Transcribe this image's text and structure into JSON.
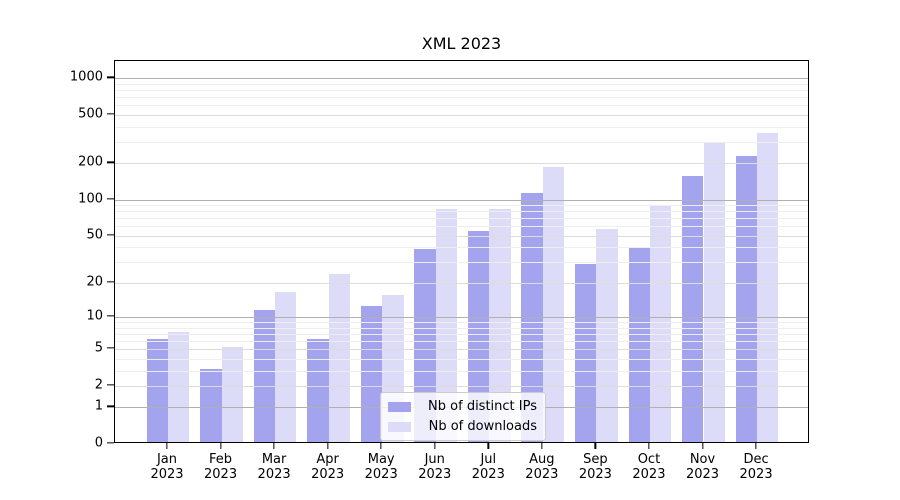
{
  "chart_data": {
    "type": "bar",
    "title": "XML 2023",
    "categories": [
      {
        "month": "Jan",
        "year": "2023"
      },
      {
        "month": "Feb",
        "year": "2023"
      },
      {
        "month": "Mar",
        "year": "2023"
      },
      {
        "month": "Apr",
        "year": "2023"
      },
      {
        "month": "May",
        "year": "2023"
      },
      {
        "month": "Jun",
        "year": "2023"
      },
      {
        "month": "Jul",
        "year": "2023"
      },
      {
        "month": "Aug",
        "year": "2023"
      },
      {
        "month": "Sep",
        "year": "2023"
      },
      {
        "month": "Oct",
        "year": "2023"
      },
      {
        "month": "Nov",
        "year": "2023"
      },
      {
        "month": "Dec",
        "year": "2023"
      }
    ],
    "series": [
      {
        "name": "Nb of distinct IPs",
        "color": "#a3a3ee",
        "values": [
          6,
          3,
          11,
          6,
          12,
          37,
          53,
          110,
          28,
          38,
          150,
          220
        ]
      },
      {
        "name": "Nb of downloads",
        "color": "#dcdcf8",
        "values": [
          7,
          5,
          16,
          23,
          15,
          80,
          80,
          180,
          55,
          85,
          290,
          340
        ]
      }
    ],
    "yscale": "log1p",
    "ylim": [
      0,
      1385
    ],
    "ytick_labels": [
      "0",
      "1",
      "2",
      "5",
      "10",
      "20",
      "50",
      "100",
      "200",
      "500",
      "1000"
    ],
    "yticks": [
      0,
      1,
      2,
      5,
      10,
      20,
      50,
      100,
      200,
      500,
      1000
    ],
    "minor_gridlines": [
      3,
      4,
      6,
      7,
      8,
      9,
      30,
      40,
      60,
      70,
      80,
      90,
      300,
      400,
      600,
      700,
      800,
      900
    ],
    "strong_gridlines": [
      1,
      10,
      100,
      1000
    ],
    "grid": true,
    "legend_position": "lower-center",
    "colors": {
      "grid_strong": "#b0b0b0",
      "grid_labeled": "#dcdcdc",
      "grid_minor": "#eeeeee",
      "axis": "#000000",
      "background": "#ffffff"
    }
  }
}
